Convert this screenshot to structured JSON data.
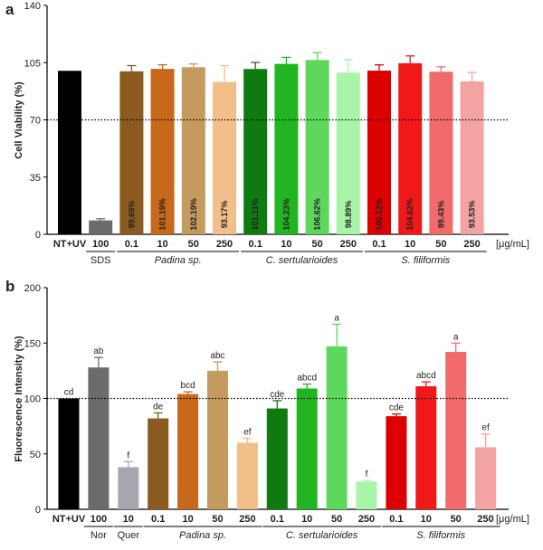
{
  "panels": [
    {
      "letter": "a",
      "chart_data": {
        "type": "bar",
        "ylabel": "Cell Viability (%)",
        "ylim": [
          0,
          140
        ],
        "yticks": [
          0,
          35,
          70,
          105,
          140
        ],
        "reference_line": 70,
        "categories": [
          "NT+UV",
          "100",
          "0.1",
          "10",
          "50",
          "250",
          "0.1",
          "10",
          "50",
          "250",
          "0.1",
          "10",
          "50",
          "250"
        ],
        "values": [
          100,
          8.5,
          99.69,
          101.19,
          102.19,
          93.17,
          101.11,
          104.23,
          106.62,
          98.89,
          100.12,
          104.62,
          99.43,
          93.53
        ],
        "errors": [
          0,
          1,
          3.5,
          2.5,
          2,
          10,
          4,
          4,
          4.5,
          8,
          3.5,
          4.5,
          3,
          5.5
        ],
        "bar_labels": [
          "",
          "",
          "99.69%",
          "101.19%",
          "102.19%",
          "93.17%",
          "101.11%",
          "104.23%",
          "106.62%",
          "98.89%",
          "100.12%",
          "104.62%",
          "99.43%",
          "93.53%"
        ],
        "colors": [
          "#000000",
          "#6b6b6b",
          "#8b5a1e",
          "#c8681a",
          "#c59a5e",
          "#f2be8a",
          "#0f7a10",
          "#21b621",
          "#5dd85d",
          "#a8f5a8",
          "#dd0000",
          "#f01818",
          "#f26a6a",
          "#f4a3a3"
        ],
        "groups": [
          {
            "label": "SDS",
            "italic": false,
            "start": 1,
            "end": 1
          },
          {
            "label": "Padina sp.",
            "italic": true,
            "start": 2,
            "end": 5
          },
          {
            "label": "C. sertularioides",
            "italic": true,
            "start": 6,
            "end": 9
          },
          {
            "label": "S. filiformis",
            "italic": true,
            "start": 10,
            "end": 13
          }
        ],
        "unit": "[μg/mL]"
      }
    },
    {
      "letter": "b",
      "chart_data": {
        "type": "bar",
        "ylabel": "Fluorescence Intensity (%)",
        "ylim": [
          0,
          200
        ],
        "yticks": [
          0,
          50,
          100,
          150,
          200
        ],
        "reference_line": 100,
        "categories": [
          "NT+UV",
          "100",
          "10",
          "0.1",
          "10",
          "50",
          "250",
          "0.1",
          "10",
          "50",
          "250",
          "0.1",
          "10",
          "50",
          "250"
        ],
        "values": [
          100,
          128,
          38,
          82,
          104,
          125,
          60,
          91,
          109,
          147,
          25,
          84,
          111,
          142,
          56
        ],
        "errors": [
          0,
          9,
          5,
          5,
          2,
          8,
          4,
          7,
          4,
          20,
          1,
          2,
          4,
          8,
          12
        ],
        "letters": [
          "cd",
          "ab",
          "f",
          "de",
          "bcd",
          "abc",
          "ef",
          "cde",
          "abcd",
          "a",
          "f",
          "cde",
          "abcd",
          "a",
          "ef"
        ],
        "colors": [
          "#000000",
          "#6b6b6b",
          "#a7a7b0",
          "#8b5a1e",
          "#c8681a",
          "#c59a5e",
          "#f2be8a",
          "#0f7a10",
          "#21b621",
          "#5dd85d",
          "#a8f5a8",
          "#dd0000",
          "#f01818",
          "#f26a6a",
          "#f4a3a3"
        ],
        "groups": [
          {
            "label": "Nor",
            "italic": false,
            "start": 1,
            "end": 1
          },
          {
            "label": "Quer",
            "italic": false,
            "start": 2,
            "end": 2
          },
          {
            "label": "Padina sp.",
            "italic": true,
            "start": 3,
            "end": 6
          },
          {
            "label": "C. sertularioides",
            "italic": true,
            "start": 7,
            "end": 10
          },
          {
            "label": "S. filiformis",
            "italic": true,
            "start": 11,
            "end": 14
          }
        ],
        "unit": "[μg/mL]"
      }
    }
  ]
}
